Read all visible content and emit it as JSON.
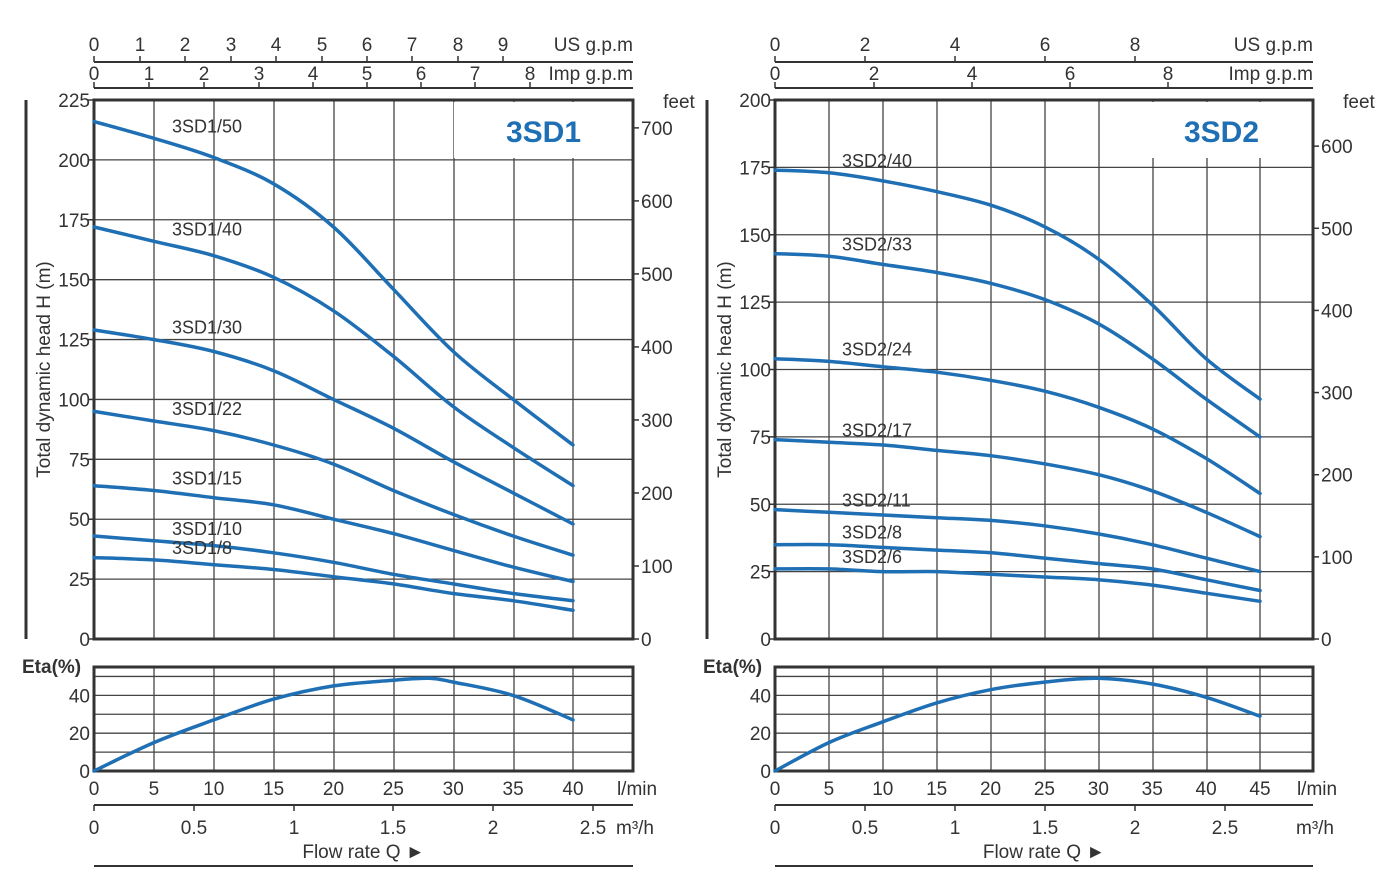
{
  "chart_data": [
    {
      "type": "line",
      "model": "3SD1",
      "flow_units": {
        "main": "l/min",
        "second": "m³/h",
        "us": "US g.p.m",
        "imp": "Imp g.p.m"
      },
      "head_units": {
        "left": "Total dynamic head H (m)",
        "right": "feet"
      },
      "xlabel": "Flow rate Q ►",
      "x_ticks_lmin": [
        "0",
        "5",
        "10",
        "15",
        "20",
        "25",
        "30",
        "35",
        "40"
      ],
      "x_ticks_m3h": [
        "0",
        "0.5",
        "1",
        "1.5",
        "2",
        "2.5"
      ],
      "x_ticks_us": [
        "0",
        "1",
        "2",
        "3",
        "4",
        "5",
        "6",
        "7",
        "8",
        "9"
      ],
      "x_ticks_imp": [
        "0",
        "1",
        "2",
        "3",
        "4",
        "5",
        "6",
        "7",
        "8"
      ],
      "xlim": [
        0,
        40
      ],
      "head_ticks": [
        "0",
        "25",
        "50",
        "75",
        "100",
        "125",
        "150",
        "175",
        "200",
        "225"
      ],
      "feet_ticks": [
        "0",
        "100",
        "200",
        "300",
        "400",
        "500",
        "600",
        "700"
      ],
      "ylim": [
        0,
        225
      ],
      "eta_label": "Eta(%)",
      "eta_ticks": [
        "0",
        "20",
        "40"
      ],
      "eta_ylim": [
        0,
        55
      ],
      "series": [
        {
          "name": "3SD1/50",
          "x": [
            0,
            5,
            10,
            15,
            20,
            25,
            30,
            35,
            40
          ],
          "y": [
            216,
            209,
            201,
            190,
            172,
            146,
            120,
            100,
            81
          ]
        },
        {
          "name": "3SD1/40",
          "x": [
            0,
            5,
            10,
            15,
            20,
            25,
            30,
            35,
            40
          ],
          "y": [
            172,
            166,
            160,
            151,
            137,
            118,
            97,
            80,
            64
          ]
        },
        {
          "name": "3SD1/30",
          "x": [
            0,
            5,
            10,
            15,
            20,
            25,
            30,
            35,
            40
          ],
          "y": [
            129,
            125,
            120,
            112,
            100,
            88,
            74,
            61,
            48
          ]
        },
        {
          "name": "3SD1/22",
          "x": [
            0,
            5,
            10,
            15,
            20,
            25,
            30,
            35,
            40
          ],
          "y": [
            95,
            91,
            87,
            81,
            73,
            62,
            52,
            43,
            35
          ]
        },
        {
          "name": "3SD1/15",
          "x": [
            0,
            5,
            10,
            15,
            20,
            25,
            30,
            35,
            40
          ],
          "y": [
            64,
            62,
            59,
            56,
            50,
            44,
            37,
            30,
            24
          ]
        },
        {
          "name": "3SD1/10",
          "x": [
            0,
            5,
            10,
            15,
            20,
            25,
            30,
            35,
            40
          ],
          "y": [
            43,
            41,
            39,
            36,
            32,
            27,
            23,
            19,
            16
          ]
        },
        {
          "name": "3SD1/8",
          "x": [
            0,
            5,
            10,
            15,
            20,
            25,
            30,
            35,
            40
          ],
          "y": [
            34,
            33,
            31,
            29,
            26,
            23,
            19,
            16,
            12
          ]
        }
      ],
      "eta": {
        "x": [
          0,
          5,
          10,
          15,
          20,
          25,
          28,
          30,
          35,
          40
        ],
        "y": [
          0,
          15,
          27,
          38,
          45,
          48,
          49,
          47,
          40,
          27
        ]
      }
    },
    {
      "type": "line",
      "model": "3SD2",
      "flow_units": {
        "main": "l/min",
        "second": "m³/h",
        "us": "US g.p.m",
        "imp": "Imp g.p.m"
      },
      "head_units": {
        "left": "Total dynamic head H (m)",
        "right": "feet"
      },
      "xlabel": "Flow rate Q ►",
      "x_ticks_lmin": [
        "0",
        "5",
        "10",
        "15",
        "20",
        "25",
        "30",
        "35",
        "40",
        "45"
      ],
      "x_ticks_m3h": [
        "0",
        "0.5",
        "1",
        "1.5",
        "2",
        "2.5"
      ],
      "x_ticks_us": [
        "0",
        "2",
        "4",
        "6",
        "8"
      ],
      "x_ticks_imp": [
        "0",
        "2",
        "4",
        "6",
        "8"
      ],
      "xlim": [
        0,
        45
      ],
      "head_ticks": [
        "0",
        "25",
        "50",
        "75",
        "100",
        "125",
        "150",
        "175",
        "200"
      ],
      "feet_ticks": [
        "0",
        "100",
        "200",
        "300",
        "400",
        "500",
        "600"
      ],
      "ylim": [
        0,
        200
      ],
      "eta_label": "Eta(%)",
      "eta_ticks": [
        "0",
        "20",
        "40"
      ],
      "eta_ylim": [
        0,
        55
      ],
      "series": [
        {
          "name": "3SD2/40",
          "x": [
            0,
            5,
            10,
            15,
            20,
            25,
            30,
            35,
            40,
            45
          ],
          "y": [
            174,
            173,
            170,
            166,
            161,
            153,
            141,
            124,
            104,
            89
          ]
        },
        {
          "name": "3SD2/33",
          "x": [
            0,
            5,
            10,
            15,
            20,
            25,
            30,
            35,
            40,
            45
          ],
          "y": [
            143,
            142,
            139,
            136,
            132,
            126,
            117,
            104,
            89,
            75
          ]
        },
        {
          "name": "3SD2/24",
          "x": [
            0,
            5,
            10,
            15,
            20,
            25,
            30,
            35,
            40,
            45
          ],
          "y": [
            104,
            103,
            101,
            99,
            96,
            92,
            86,
            78,
            67,
            54
          ]
        },
        {
          "name": "3SD2/17",
          "x": [
            0,
            5,
            10,
            15,
            20,
            25,
            30,
            35,
            40,
            45
          ],
          "y": [
            74,
            73,
            72,
            70,
            68,
            65,
            61,
            55,
            47,
            38
          ]
        },
        {
          "name": "3SD2/11",
          "x": [
            0,
            5,
            10,
            15,
            20,
            25,
            30,
            35,
            40,
            45
          ],
          "y": [
            48,
            47,
            46,
            45,
            44,
            42,
            39,
            35,
            30,
            25
          ]
        },
        {
          "name": "3SD2/8",
          "x": [
            0,
            5,
            10,
            15,
            20,
            25,
            30,
            35,
            40,
            45
          ],
          "y": [
            35,
            35,
            34,
            33,
            32,
            30,
            28,
            26,
            22,
            18
          ]
        },
        {
          "name": "3SD2/6",
          "x": [
            0,
            5,
            10,
            15,
            20,
            25,
            30,
            35,
            40,
            45
          ],
          "y": [
            26,
            26,
            25,
            25,
            24,
            23,
            22,
            20,
            17,
            14
          ]
        }
      ],
      "eta": {
        "x": [
          0,
          5,
          10,
          15,
          20,
          25,
          30,
          35,
          40,
          45
        ],
        "y": [
          0,
          15,
          26,
          36,
          43,
          47,
          49,
          46,
          39,
          29
        ]
      }
    }
  ]
}
